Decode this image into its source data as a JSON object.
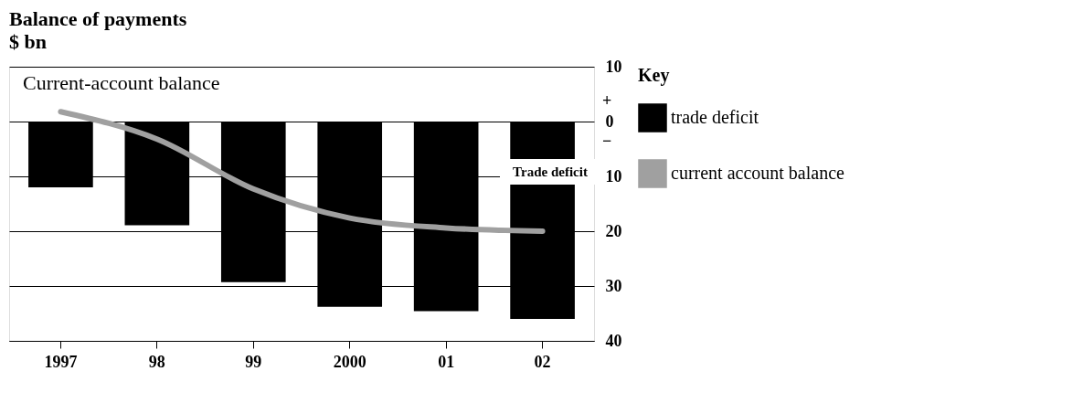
{
  "chart_data": {
    "type": "bar",
    "title": "Balance of payments",
    "subtitle": "$ bn",
    "legend_title": "Key",
    "categories": [
      "1997",
      "98",
      "99",
      "2000",
      "01",
      "02"
    ],
    "series": [
      {
        "name": "trade deficit",
        "color": "#000000",
        "values": [
          -12,
          -18.9,
          -29.3,
          -33.8,
          -34.6,
          -36
        ]
      },
      {
        "name": "current account balance",
        "type": "line",
        "color": "#a0a0a0",
        "values": [
          1.8,
          -3.2,
          -12.3,
          -17.6,
          -19.4,
          -20
        ]
      }
    ],
    "ylim": [
      -40,
      10
    ],
    "yticks": [
      10,
      {
        "value": 0,
        "label": "0"
      },
      {
        "value": -10,
        "label": "10"
      },
      {
        "value": -20,
        "label": "20"
      },
      {
        "value": -30,
        "label": "30"
      },
      {
        "value": -40,
        "label": "40"
      }
    ],
    "annotations": [
      "Current-account balance",
      "Trade deficit",
      "+",
      "−"
    ],
    "grid": "y",
    "legend": "right"
  }
}
